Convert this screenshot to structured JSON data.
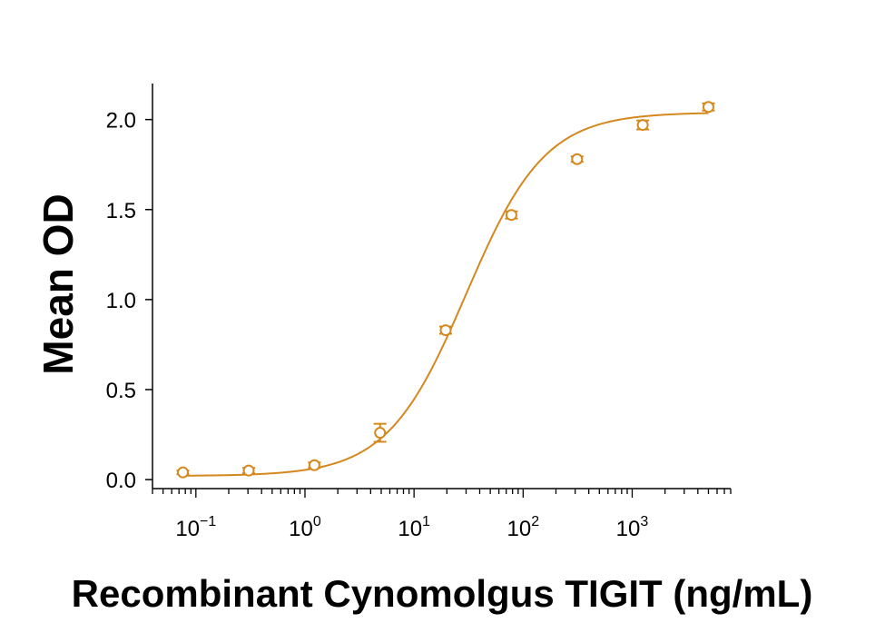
{
  "chart_data": {
    "type": "scatter",
    "title": "",
    "xlabel": "Recombinant Cynomolgus TIGIT (ng/mL)",
    "ylabel": "Mean OD",
    "x_scale": "log10",
    "xlim": [
      0.04,
      8000
    ],
    "ylim": [
      -0.05,
      2.2
    ],
    "x_ticks": [
      {
        "base": "10",
        "exp": "−1",
        "value": 0.1
      },
      {
        "base": "10",
        "exp": "0",
        "value": 1
      },
      {
        "base": "10",
        "exp": "1",
        "value": 10
      },
      {
        "base": "10",
        "exp": "2",
        "value": 100
      },
      {
        "base": "10",
        "exp": "3",
        "value": 1000
      }
    ],
    "y_ticks": [
      {
        "label": "0.0",
        "value": 0.0
      },
      {
        "label": "0.5",
        "value": 0.5
      },
      {
        "label": "1.0",
        "value": 1.0
      },
      {
        "label": "1.5",
        "value": 1.5
      },
      {
        "label": "2.0",
        "value": 2.0
      }
    ],
    "color": "#D4881E",
    "grid": false,
    "legend": "none",
    "series": [
      {
        "points": [
          {
            "x": 0.076,
            "y": 0.04,
            "err": 0.01
          },
          {
            "x": 0.305,
            "y": 0.05,
            "err": 0.015
          },
          {
            "x": 1.22,
            "y": 0.08,
            "err": 0.015
          },
          {
            "x": 4.88,
            "y": 0.26,
            "err": 0.05
          },
          {
            "x": 19.5,
            "y": 0.83,
            "err": 0.02
          },
          {
            "x": 78.1,
            "y": 1.47,
            "err": 0.02
          },
          {
            "x": 312.5,
            "y": 1.78,
            "err": 0.015
          },
          {
            "x": 1250,
            "y": 1.97,
            "err": 0.025
          },
          {
            "x": 5000,
            "y": 2.07,
            "err": 0.02
          }
        ],
        "fit": {
          "model": "4PL",
          "bottom": 0.02,
          "top": 2.04,
          "ec50": 30,
          "hill": 1.2
        }
      }
    ]
  }
}
